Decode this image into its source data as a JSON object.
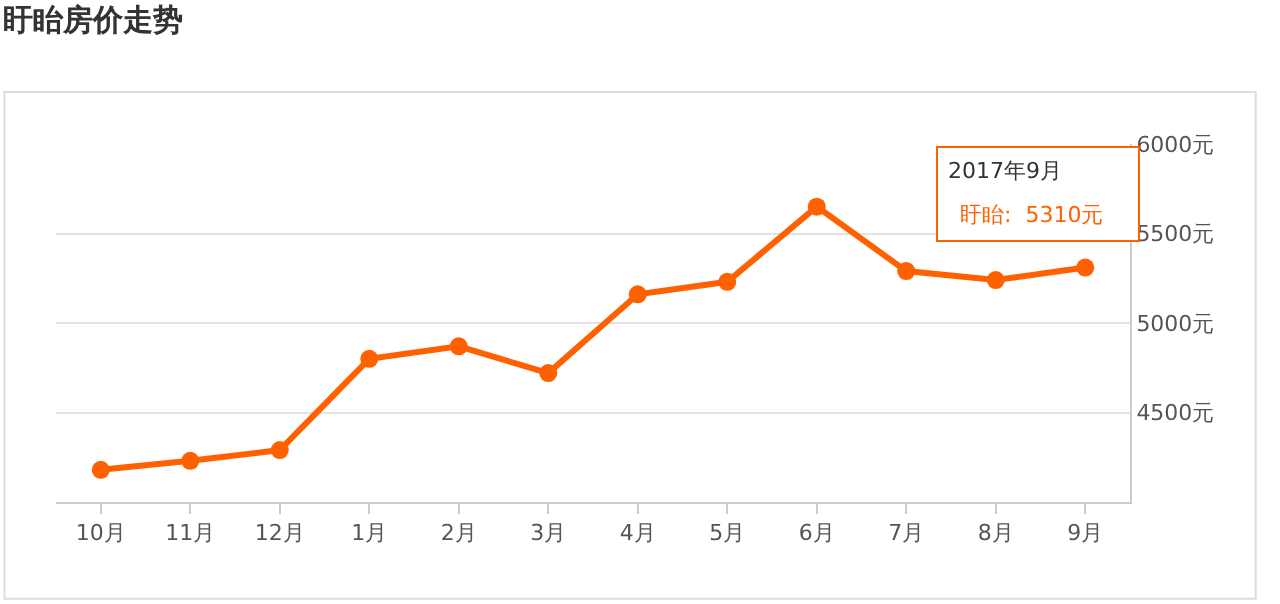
{
  "chart_data": {
    "type": "line",
    "title": "盱眙房价走势",
    "categories": [
      "10月",
      "11月",
      "12月",
      "1月",
      "2月",
      "3月",
      "4月",
      "5月",
      "6月",
      "7月",
      "8月",
      "9月"
    ],
    "series": [
      {
        "color": "#ff6000",
        "values": [
          4180,
          4230,
          4290,
          4800,
          4870,
          4720,
          5160,
          5230,
          5650,
          5290,
          5240,
          5310
        ]
      }
    ],
    "ylim": [
      4000,
      6000
    ],
    "yticks": [
      {
        "value": 4500,
        "label": "4500元"
      },
      {
        "value": 5000,
        "label": "5000元"
      },
      {
        "value": 5500,
        "label": "5500元"
      },
      {
        "value": 6000,
        "label": "6000元"
      }
    ],
    "grid": "y",
    "marker": "circle",
    "line_style": "solid",
    "annotations": [
      "2017年9月",
      "盱眙:  5310元"
    ]
  }
}
